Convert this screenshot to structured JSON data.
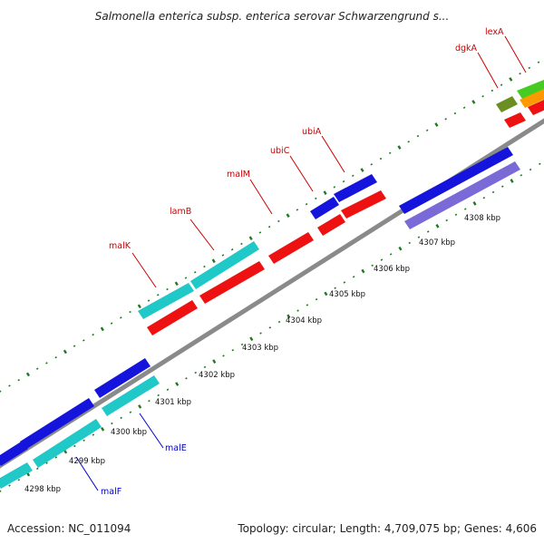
{
  "title": "Salmonella enterica subsp. enterica serovar Schwarzengrund s...",
  "footer": {
    "accession": "Accession: NC_011094",
    "summary": "Topology: circular; Length: 4,709,075 bp; Genes: 4,606"
  },
  "colors": {
    "backbone": "#8a8a8a",
    "ticks": "#1e7a1e",
    "label_top": "#cc0000",
    "label_bottom": "#0000cc",
    "blue": "#1414dc",
    "cyan": "#20c8c8",
    "red": "#ee1111",
    "purple": "#7a6ad8",
    "olive": "#6b8e23",
    "green": "#44cc22",
    "orange": "#ff9900"
  },
  "tick_labels": [
    "4298 kbp",
    "4299 kbp",
    "4300 kbp",
    "4301 kbp",
    "4302 kbp",
    "4303 kbp",
    "4304 kbp",
    "4305 kbp",
    "4306 kbp",
    "4307 kbp",
    "4308 kbp"
  ],
  "gene_labels_top": [
    "malK",
    "lamB",
    "malM",
    "ubiC",
    "ubiA",
    "dgkA",
    "lexA"
  ],
  "gene_labels_bottom": [
    "malE",
    "malF"
  ]
}
